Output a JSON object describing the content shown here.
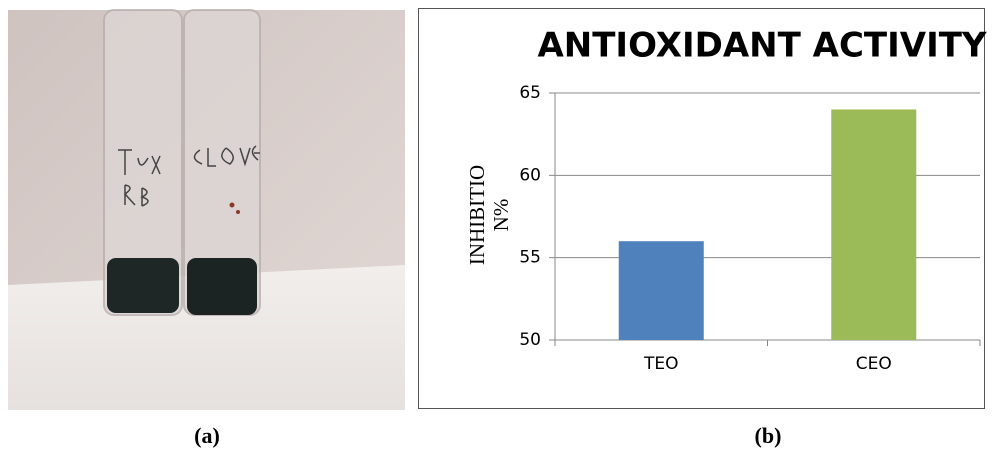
{
  "captions": [
    "(a)",
    "(b)"
  ],
  "chart_data": {
    "type": "bar",
    "title": "ANTIOXIDANT ACTIVITY",
    "ylabel": [
      "INHIBITIO",
      "N%"
    ],
    "categories": [
      "TEO",
      "CEO"
    ],
    "values": [
      56,
      64
    ],
    "colors": [
      "#4f81bd",
      "#9bbb59"
    ],
    "ylim": [
      50,
      65
    ],
    "yticks": [
      50,
      55,
      60,
      65
    ],
    "grid": true
  }
}
